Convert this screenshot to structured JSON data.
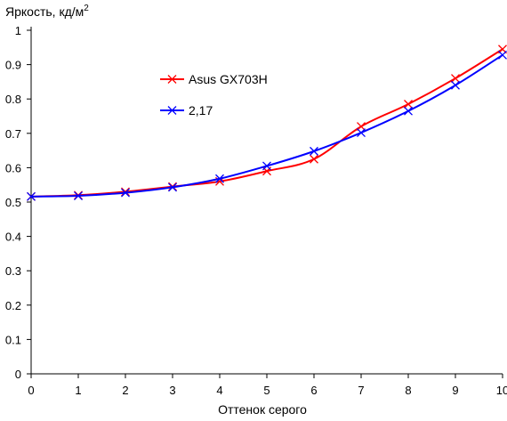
{
  "chart_data": {
    "type": "line",
    "ylabel": "Яркость, кд/м",
    "ylabel_sup": "2",
    "xlabel": "Оттенок серого",
    "xlim": [
      0,
      10
    ],
    "ylim": [
      0,
      1
    ],
    "x_ticks": [
      "0",
      "1",
      "2",
      "3",
      "4",
      "5",
      "6",
      "7",
      "8",
      "9",
      "10"
    ],
    "y_ticks": [
      "0",
      "0.1",
      "0.2",
      "0.3",
      "0.4",
      "0.5",
      "0.6",
      "0.7",
      "0.8",
      "0.9",
      "1"
    ],
    "grid": false,
    "legend_position": "upper-left inside plot",
    "x": [
      0,
      1,
      2,
      3,
      4,
      5,
      6,
      7,
      8,
      9,
      10
    ],
    "series": [
      {
        "name": "Asus GX703H",
        "color": "#ff0000",
        "marker": "x",
        "values": [
          0.516,
          0.52,
          0.53,
          0.545,
          0.56,
          0.59,
          0.625,
          0.72,
          0.785,
          0.86,
          0.945
        ]
      },
      {
        "name": "2,17",
        "color": "#0000ff",
        "marker": "x",
        "values": [
          0.516,
          0.518,
          0.527,
          0.543,
          0.568,
          0.605,
          0.648,
          0.702,
          0.765,
          0.84,
          0.928
        ]
      }
    ]
  }
}
